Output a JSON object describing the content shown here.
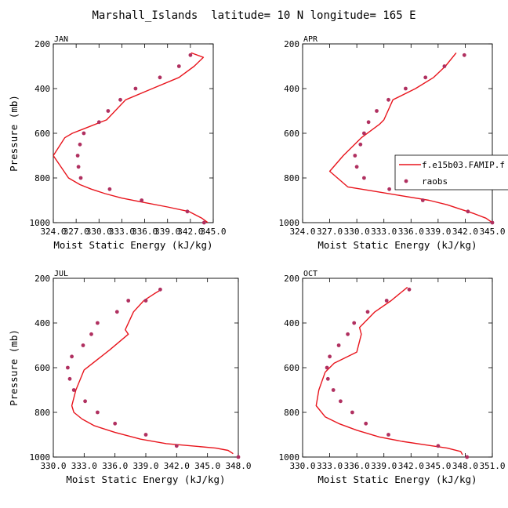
{
  "page_title": "Marshall_Islands  latitude= 10 N longitude= 165 E",
  "colors": {
    "model_line": "#e8141c",
    "obs_points": "#b03060",
    "axes": "#000000"
  },
  "legend": {
    "model_label": "f.e15b03.FAMIP.f",
    "obs_label": "raobs"
  },
  "chart_data": [
    {
      "type": "line",
      "panel_label": "JAN",
      "xlabel": "Moist Static Energy (kJ/kg)",
      "ylabel": "Pressure (mb)",
      "xlim": [
        324.0,
        345.0
      ],
      "xticks": [
        324.0,
        327.0,
        330.0,
        333.0,
        336.0,
        339.0,
        342.0,
        345.0
      ],
      "xtick_labels": [
        "324.0",
        "327.0",
        "330.0",
        "333.0",
        "336.0",
        "339.0",
        "342.0",
        "345.0"
      ],
      "ylim": [
        1000,
        200
      ],
      "yticks": [
        200,
        400,
        600,
        800,
        1000
      ],
      "ytick_labels": [
        "200",
        "400",
        "600",
        "800",
        "1000"
      ],
      "series": [
        {
          "kind": "line",
          "x": [
            344.3,
            343.5,
            341.8,
            339.0,
            336.0,
            333.0,
            330.8,
            329.0,
            327.5,
            326.0,
            324.0,
            325.5,
            326.5,
            328.0,
            331.0,
            333.5,
            337.0,
            340.5,
            342.5,
            343.4,
            343.7,
            342.1
          ],
          "y": [
            1000,
            980,
            950,
            930,
            910,
            890,
            870,
            850,
            830,
            800,
            700,
            620,
            600,
            580,
            540,
            450,
            400,
            350,
            300,
            270,
            260,
            240
          ]
        },
        {
          "kind": "scatter",
          "x": [
            343.8,
            341.6,
            335.6,
            331.4,
            327.6,
            327.3,
            327.2,
            327.5,
            328.0,
            330.0,
            331.2,
            332.8,
            334.8,
            338.0,
            340.5,
            342.0
          ],
          "y": [
            1000,
            950,
            900,
            850,
            800,
            750,
            700,
            650,
            600,
            550,
            500,
            450,
            400,
            350,
            300,
            250
          ]
        }
      ]
    },
    {
      "type": "line",
      "panel_label": "APR",
      "xlabel": "Moist Static Energy (kJ/kg)",
      "ylabel": "Pressure (mb)",
      "xlim": [
        324.0,
        345.0
      ],
      "xticks": [
        324.0,
        327.0,
        330.0,
        333.0,
        336.0,
        339.0,
        342.0,
        345.0
      ],
      "xtick_labels": [
        "324.0",
        "327.0",
        "330.0",
        "333.0",
        "336.0",
        "339.0",
        "342.0",
        "345.0"
      ],
      "ylim": [
        1000,
        200
      ],
      "yticks": [
        200,
        400,
        600,
        800,
        1000
      ],
      "ytick_labels": [
        "200",
        "400",
        "600",
        "800",
        "1000"
      ],
      "series": [
        {
          "kind": "line",
          "x": [
            345.0,
            344.3,
            343.0,
            341.5,
            340.0,
            338.0,
            335.0,
            332.0,
            329.0,
            327.0,
            328.5,
            330.5,
            332.5,
            333.0,
            334.0,
            336.5,
            338.5,
            339.8,
            341.0
          ],
          "y": [
            1000,
            980,
            960,
            940,
            920,
            900,
            880,
            860,
            840,
            770,
            700,
            620,
            560,
            540,
            450,
            400,
            350,
            300,
            240
          ]
        },
        {
          "kind": "scatter",
          "x": [
            345.0,
            342.3,
            337.3,
            333.6,
            330.8,
            330.0,
            329.8,
            330.4,
            330.8,
            331.3,
            332.2,
            333.5,
            335.4,
            337.6,
            339.7,
            341.9
          ],
          "y": [
            1000,
            950,
            900,
            850,
            800,
            750,
            700,
            650,
            600,
            550,
            500,
            450,
            400,
            350,
            300,
            250
          ]
        }
      ]
    },
    {
      "type": "line",
      "panel_label": "JUL",
      "xlabel": "Moist Static Energy (kJ/kg)",
      "ylabel": "Pressure (mb)",
      "xlim": [
        330.0,
        348.0
      ],
      "xticks": [
        330.0,
        333.0,
        336.0,
        339.0,
        342.0,
        345.0,
        348.0
      ],
      "xtick_labels": [
        "330.0",
        "333.0",
        "336.0",
        "339.0",
        "342.0",
        "345.0",
        "348.0"
      ],
      "ylim": [
        1000,
        200
      ],
      "yticks": [
        200,
        400,
        600,
        800,
        1000
      ],
      "ytick_labels": [
        "200",
        "400",
        "600",
        "800",
        "1000"
      ],
      "series": [
        {
          "kind": "line",
          "x": [
            347.5,
            347.0,
            345.8,
            343.5,
            341.0,
            338.5,
            336.0,
            334.0,
            332.8,
            332.0,
            331.8,
            332.2,
            333.0,
            335.5,
            337.3,
            337.0,
            337.8,
            338.8,
            339.8,
            340.5
          ],
          "y": [
            985,
            970,
            960,
            950,
            940,
            920,
            890,
            860,
            830,
            800,
            770,
            700,
            610,
            520,
            450,
            430,
            350,
            300,
            270,
            250
          ]
        },
        {
          "kind": "scatter",
          "x": [
            348.0,
            342.0,
            339.0,
            336.0,
            334.3,
            333.1,
            332.0,
            331.6,
            331.4,
            331.8,
            332.9,
            333.7,
            334.3,
            336.2,
            337.3,
            339.0,
            340.4
          ],
          "y": [
            1000,
            950,
            900,
            850,
            800,
            750,
            700,
            650,
            600,
            550,
            500,
            450,
            400,
            350,
            300,
            300,
            250
          ]
        }
      ]
    },
    {
      "type": "line",
      "panel_label": "OCT",
      "xlabel": "Moist Static Energy (kJ/kg)",
      "ylabel": "Pressure (mb)",
      "xlim": [
        330.0,
        351.0
      ],
      "xticks": [
        330.0,
        333.0,
        336.0,
        339.0,
        342.0,
        345.0,
        348.0,
        351.0
      ],
      "xtick_labels": [
        "330.0",
        "333.0",
        "336.0",
        "339.0",
        "342.0",
        "345.0",
        "348.0",
        "351.0"
      ],
      "ylim": [
        1000,
        200
      ],
      "yticks": [
        200,
        400,
        600,
        800,
        1000
      ],
      "ytick_labels": [
        "200",
        "400",
        "600",
        "800",
        "1000"
      ],
      "series": [
        {
          "kind": "line",
          "x": [
            347.7,
            347.5,
            346.0,
            343.5,
            341.0,
            338.5,
            336.0,
            334.0,
            332.5,
            331.5,
            331.8,
            332.5,
            333.5,
            336.0,
            336.5,
            336.3,
            338.0,
            339.8,
            341.6
          ],
          "y": [
            990,
            975,
            960,
            945,
            930,
            910,
            880,
            850,
            820,
            770,
            700,
            620,
            580,
            530,
            450,
            420,
            350,
            300,
            240
          ]
        },
        {
          "kind": "scatter",
          "x": [
            348.2,
            345.0,
            339.5,
            337.0,
            335.5,
            334.2,
            333.4,
            332.8,
            332.7,
            333.0,
            334.0,
            335.0,
            335.7,
            337.2,
            339.3,
            341.8
          ],
          "y": [
            1000,
            950,
            900,
            850,
            800,
            750,
            700,
            650,
            600,
            550,
            500,
            450,
            400,
            350,
            300,
            250
          ]
        }
      ]
    }
  ]
}
